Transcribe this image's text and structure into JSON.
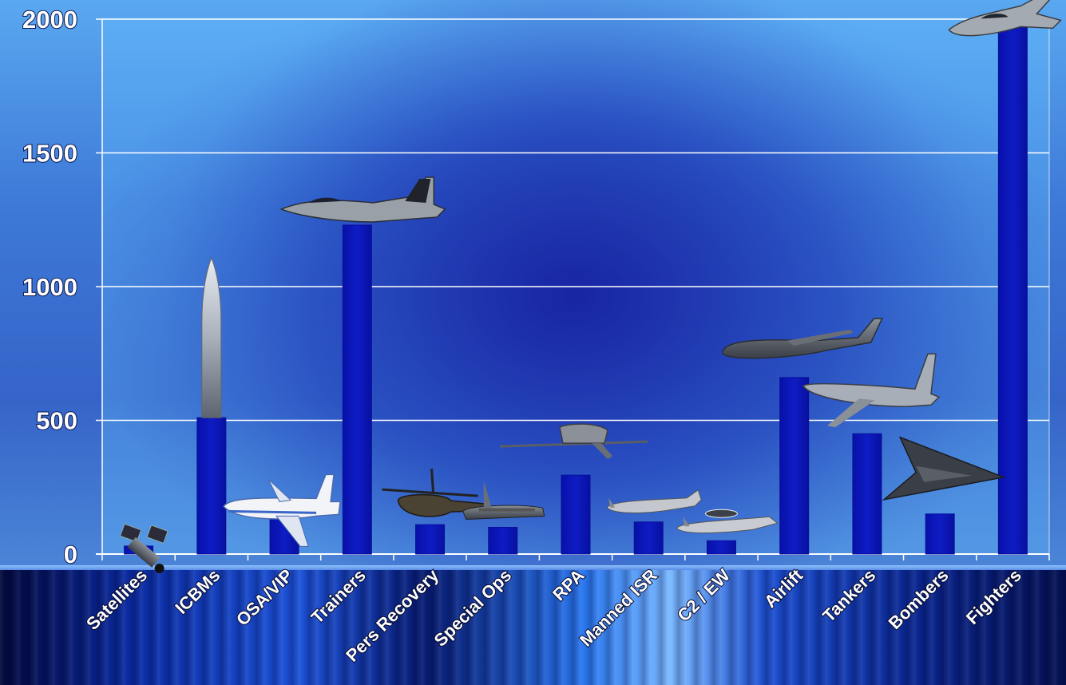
{
  "chart_data": {
    "type": "bar",
    "categories": [
      "Satellites",
      "ICBMs",
      "OSA/VIP",
      "Trainers",
      "Pers Recovery",
      "Special Ops",
      "RPA",
      "Manned ISR",
      "C2 / EW",
      "Airlift",
      "Tankers",
      "Bombers",
      "Fighters"
    ],
    "series": [
      {
        "values": [
          30,
          510,
          160,
          1230,
          110,
          100,
          295,
          120,
          50,
          660,
          450,
          150,
          1990
        ]
      }
    ],
    "yticks": [
      0,
      500,
      1000,
      1500,
      2000
    ],
    "ylim": [
      0,
      2000
    ],
    "grid": true,
    "legend": "none",
    "colors": {
      "bar": "#0a14b4",
      "bar_edge": "#06109a",
      "grid": "#ffffff",
      "text": "#ffffff"
    },
    "icons": [
      "satellite-icon",
      "icbm-missile-icon",
      "vip-airliner-icon",
      "trainer-jet-icon",
      "helicopter-icon",
      "special-ops-transport-icon",
      "rpa-drone-icon",
      "isr-aircraft-icon",
      "awacs-aircraft-icon",
      "airlift-transport-icon",
      "tanker-aircraft-icon",
      "stealth-bomber-icon",
      "fighter-jet-icon"
    ]
  }
}
